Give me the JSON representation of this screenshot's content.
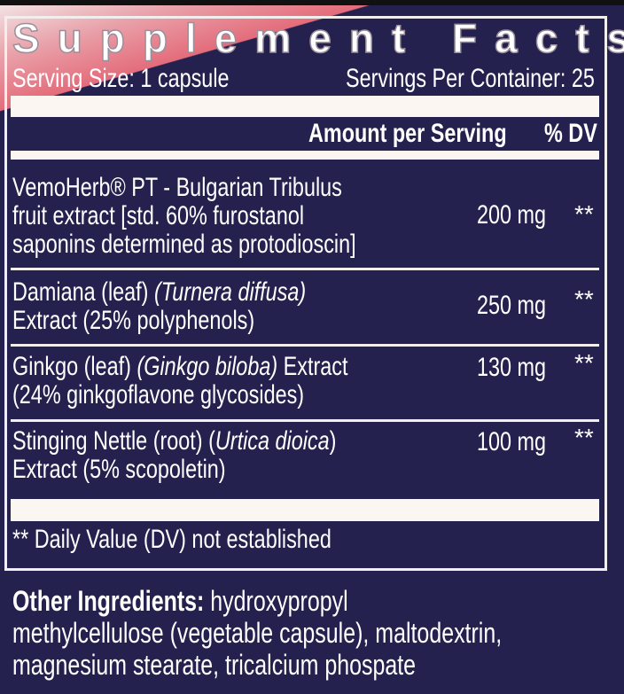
{
  "title": "Supplement Facts",
  "serving_size": "Serving Size: 1 capsule",
  "servings_per_container": "Servings Per Container: 25",
  "header": {
    "amount": "Amount per Serving",
    "dv": "% DV"
  },
  "ingredients": [
    {
      "lines": [
        "VemoHerb® PT - Bulgarian Tribulus",
        "fruit extract [std. 60% furostanol",
        "saponins determined as protodioscin]"
      ],
      "amount": "200 mg",
      "dv": "**"
    },
    {
      "name": "Damiana (leaf) ",
      "latin": "(Turnera diffusa)",
      "line2": "Extract (25% polyphenols)",
      "amount": "250 mg",
      "dv": "**"
    },
    {
      "name": "Ginkgo (leaf) ",
      "latin": "(Ginkgo biloba)",
      "tail": " Extract",
      "line2": "(24% ginkgoflavone glycosides)",
      "amount": "130 mg",
      "dv": "**"
    },
    {
      "name": "Stinging Nettle (root) (",
      "latin": "Urtica dioica",
      "tail": ")",
      "line2": "Extract (5% scopoletin)",
      "amount": "100 mg",
      "dv": "**"
    }
  ],
  "footnote": "** Daily Value (DV) not established",
  "other": {
    "label": "Other Ingredients:",
    "text1": " hydroxypropyl",
    "text2": "methylcellulose (vegetable capsule), maltodextrin,",
    "text3": "magnesium stearate, tricalcium phospate"
  },
  "colors": {
    "background": "#25214f",
    "accent": "#e46c7b",
    "bar": "#fbf6f2"
  }
}
